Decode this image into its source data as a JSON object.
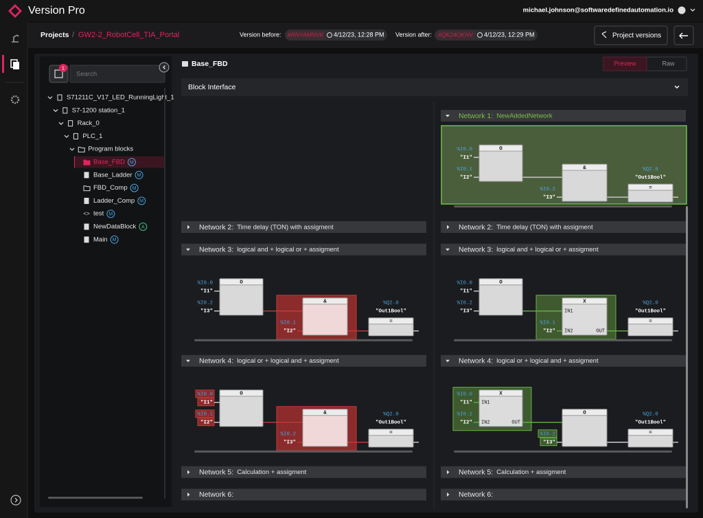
{
  "header": {
    "app_name": "Version Pro",
    "user": "michael.johnson@softwaredefinedautomation.io"
  },
  "breadcrumb": {
    "root": "Projects",
    "separator": "/",
    "project": "GW2-2_RobotCell_TIA_Portal",
    "before_label": "Version before:",
    "before_hash": "#RNYAMNVK",
    "before_time": "4/12/23, 12:28 PM",
    "after_label": "Version after:",
    "after_hash": "#QK24OKNV",
    "after_time": "4/12/23, 12:29 PM",
    "versions_button": "Project versions"
  },
  "sidebar": {
    "badge": "1",
    "search_placeholder": "Search",
    "tree": [
      {
        "label": "S71211C_V17_LED_RunningLight_1",
        "icon": "file",
        "children": [
          {
            "label": "S7-1200 station_1",
            "icon": "device",
            "children": [
              {
                "label": "Rack_0",
                "icon": "device",
                "children": [
                  {
                    "label": "PLC_1",
                    "icon": "device",
                    "children": [
                      {
                        "label": "Program blocks",
                        "icon": "folder",
                        "children": [
                          {
                            "label": "Base_FBD",
                            "icon": "folder",
                            "status": "M",
                            "selected": true
                          },
                          {
                            "label": "Base_Ladder",
                            "icon": "ladder",
                            "status": "M"
                          },
                          {
                            "label": "FBD_Comp",
                            "icon": "folder",
                            "status": "M"
                          },
                          {
                            "label": "Ladder_Comp",
                            "icon": "ladder",
                            "status": "M"
                          },
                          {
                            "label": "test",
                            "icon": "code",
                            "status": "M"
                          },
                          {
                            "label": "NewDataBlock",
                            "icon": "db",
                            "status": "A"
                          },
                          {
                            "label": "Main",
                            "icon": "ladder",
                            "status": "M"
                          }
                        ]
                      }
                    ]
                  }
                ]
              }
            ]
          }
        ]
      }
    ]
  },
  "content": {
    "title": "Base_FBD",
    "tabs": [
      "Preview",
      "Raw"
    ],
    "active_tab": 0,
    "interface": "Block Interface",
    "columns": [
      {
        "networks": [
          {
            "label": "Network 2:",
            "title": "Time delay (TON) with assigment"
          },
          {
            "label": "Network 3:",
            "title": "logical and + logical or + assigment",
            "diagram": {
              "blocks": [
                {
                  "title": "O",
                  "inputs": [
                    {
                      "address": "%I0.0",
                      "tag": "\"I1\""
                    },
                    {
                      "address": "%I0.2",
                      "tag": "\"I3\""
                    }
                  ]
                },
                {
                  "title": "&",
                  "highlight": {
                    "fill": "#8b2b2b",
                    "border": "#c23b3b",
                    "body": "#f0d8d8"
                  },
                  "inputs": [
                    {
                      "address": "%I0.1",
                      "tag": "\"I2\""
                    }
                  ]
                },
                {
                  "title": "=",
                  "operand": {
                    "address": "%Q2.0",
                    "tag": "\"Out1Bool\""
                  }
                }
              ]
            }
          },
          {
            "label": "Network 4:",
            "title": "logical or + logical and + assigment",
            "diagram": {
              "blocks": [
                {
                  "title": "O",
                  "input_fill": "#8b2b2b",
                  "inputs": [
                    {
                      "address": "%I0.0",
                      "tag": "\"I1\""
                    },
                    {
                      "address": "%I0.1",
                      "tag": "\"I2\""
                    }
                  ]
                },
                {
                  "title": "&",
                  "highlight": {
                    "fill": "#8b2b2b",
                    "border": "#c23b3b",
                    "body": "#f0d8d8"
                  },
                  "inputs": [
                    {
                      "address": "%I0.2",
                      "tag": "\"I3\""
                    }
                  ]
                },
                {
                  "title": "=",
                  "operand": {
                    "address": "%Q2.0",
                    "tag": "\"Out1Bool\""
                  }
                }
              ]
            }
          },
          {
            "label": "Network 5:",
            "title": "Calculation + assigment"
          },
          {
            "label": "Network 6:",
            "title": ""
          }
        ]
      },
      {
        "networks": [
          {
            "label": "Network 1:",
            "title": "NewAddedNetwork",
            "color": "#7ac143",
            "diagram": {
              "background": "#4b5e3b",
              "border": "#6fbf4a",
              "blocks": [
                {
                  "title": "O",
                  "inputs": [
                    {
                      "address": "%I0.0",
                      "tag": "\"I1\""
                    },
                    {
                      "address": "%I0.1",
                      "tag": "\"I2\""
                    }
                  ]
                },
                {
                  "title": "&",
                  "inputs": [
                    {
                      "address": "%I0.2",
                      "tag": "\"I3\""
                    }
                  ]
                },
                {
                  "title": "=",
                  "operand": {
                    "address": "%Q2.0",
                    "tag": "\"Out1Bool\""
                  }
                }
              ]
            }
          },
          {
            "label": "Network 2:",
            "title": "Time delay (TON) with assigment"
          },
          {
            "label": "Network 3:",
            "title": "logical and + logical or + assigment",
            "diagram": {
              "blocks": [
                {
                  "title": "O",
                  "inputs": [
                    {
                      "address": "%I0.0",
                      "tag": "\"I1\""
                    },
                    {
                      "address": "%I0.2",
                      "tag": "\"I3\""
                    }
                  ]
                },
                {
                  "title": "X",
                  "pins": [
                    "IN1",
                    "IN2",
                    "OUT"
                  ],
                  "highlight": {
                    "fill": "#3f5a2f",
                    "border": "#62b445",
                    "body": "#dcdcdc"
                  },
                  "inputs": [
                    {
                      "address": "%I0.1",
                      "tag": "\"I2\""
                    }
                  ]
                },
                {
                  "title": "=",
                  "operand": {
                    "address": "%Q2.0",
                    "tag": "\"Out1Bool\""
                  }
                }
              ]
            }
          },
          {
            "label": "Network 4:",
            "title": "logical or + logical and + assigment",
            "diagram": {
              "blocks": [
                {
                  "title": "X",
                  "pins": [
                    "IN1",
                    "IN2",
                    "OUT"
                  ],
                  "highlight": {
                    "fill": "#3f5a2f",
                    "border": "#62b445",
                    "body": "#dcdcdc"
                  },
                  "inputs": [
                    {
                      "address": "%I0.0",
                      "tag": "\"I1\""
                    },
                    {
                      "address": "%I0.1",
                      "tag": "\"I2\""
                    }
                  ]
                },
                {
                  "title": "O",
                  "input_fill": "#3f5a2f",
                  "inputs": [
                    {
                      "address": "%I0.2",
                      "tag": "\"I3\""
                    }
                  ]
                },
                {
                  "title": "=",
                  "operand": {
                    "address": "%Q2.0",
                    "tag": "\"Out1Bool\""
                  }
                }
              ]
            }
          },
          {
            "label": "Network 5:",
            "title": "Calculation + assigment"
          },
          {
            "label": "Network 6:",
            "title": ""
          }
        ]
      }
    ]
  }
}
